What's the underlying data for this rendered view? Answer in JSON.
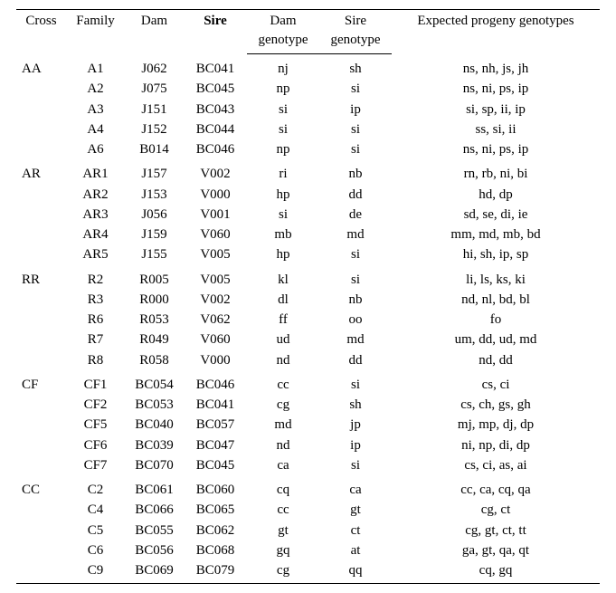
{
  "headers": {
    "cross": "Cross",
    "family": "Family",
    "dam": "Dam",
    "sire": "Sire",
    "dam_genotype_a": "Dam",
    "dam_genotype_b": "genotype",
    "sire_genotype_a": "Sire",
    "sire_genotype_b": "genotype",
    "expected": "Expected progeny genotypes"
  },
  "groups": [
    {
      "cross": "AA",
      "rows": [
        {
          "family": "A1",
          "dam": "J062",
          "sire": "BC041",
          "damg": "nj",
          "sireg": "sh",
          "prog": "ns, nh, js, jh"
        },
        {
          "family": "A2",
          "dam": "J075",
          "sire": "BC045",
          "damg": "np",
          "sireg": "si",
          "prog": "ns, ni, ps, ip"
        },
        {
          "family": "A3",
          "dam": "J151",
          "sire": "BC043",
          "damg": "si",
          "sireg": "ip",
          "prog": "si, sp, ii, ip"
        },
        {
          "family": "A4",
          "dam": "J152",
          "sire": "BC044",
          "damg": "si",
          "sireg": "si",
          "prog": "ss, si, ii"
        },
        {
          "family": "A6",
          "dam": "B014",
          "sire": "BC046",
          "damg": "np",
          "sireg": "si",
          "prog": "ns, ni, ps, ip"
        }
      ]
    },
    {
      "cross": "AR",
      "rows": [
        {
          "family": "AR1",
          "dam": "J157",
          "sire": "V002",
          "damg": "ri",
          "sireg": "nb",
          "prog": "rn, rb, ni, bi"
        },
        {
          "family": "AR2",
          "dam": "J153",
          "sire": "V000",
          "damg": "hp",
          "sireg": "dd",
          "prog": "hd, dp"
        },
        {
          "family": "AR3",
          "dam": "J056",
          "sire": "V001",
          "damg": "si",
          "sireg": "de",
          "prog": "sd, se, di, ie"
        },
        {
          "family": "AR4",
          "dam": "J159",
          "sire": "V060",
          "damg": "mb",
          "sireg": "md",
          "prog": "mm, md, mb, bd"
        },
        {
          "family": "AR5",
          "dam": "J155",
          "sire": "V005",
          "damg": "hp",
          "sireg": "si",
          "prog": "hi, sh, ip, sp"
        }
      ]
    },
    {
      "cross": "RR",
      "rows": [
        {
          "family": "R2",
          "dam": "R005",
          "sire": "V005",
          "damg": "kl",
          "sireg": "si",
          "prog": "li, ls, ks, ki"
        },
        {
          "family": "R3",
          "dam": "R000",
          "sire": "V002",
          "damg": "dl",
          "sireg": "nb",
          "prog": "nd, nl, bd, bl"
        },
        {
          "family": "R6",
          "dam": "R053",
          "sire": "V062",
          "damg": "ff",
          "sireg": "oo",
          "prog": "fo"
        },
        {
          "family": "R7",
          "dam": "R049",
          "sire": "V060",
          "damg": "ud",
          "sireg": "md",
          "prog": "um, dd, ud, md"
        },
        {
          "family": "R8",
          "dam": "R058",
          "sire": "V000",
          "damg": "nd",
          "sireg": "dd",
          "prog": "nd, dd"
        }
      ]
    },
    {
      "cross": "CF",
      "rows": [
        {
          "family": "CF1",
          "dam": "BC054",
          "sire": "BC046",
          "damg": "cc",
          "sireg": "si",
          "prog": "cs, ci"
        },
        {
          "family": "CF2",
          "dam": "BC053",
          "sire": "BC041",
          "damg": "cg",
          "sireg": "sh",
          "prog": "cs, ch, gs, gh"
        },
        {
          "family": "CF5",
          "dam": "BC040",
          "sire": "BC057",
          "damg": "md",
          "sireg": "jp",
          "prog": "mj, mp, dj, dp"
        },
        {
          "family": "CF6",
          "dam": "BC039",
          "sire": "BC047",
          "damg": "nd",
          "sireg": "ip",
          "prog": "ni, np, di, dp"
        },
        {
          "family": "CF7",
          "dam": "BC070",
          "sire": "BC045",
          "damg": "ca",
          "sireg": "si",
          "prog": "cs, ci, as, ai"
        }
      ]
    },
    {
      "cross": "CC",
      "rows": [
        {
          "family": "C2",
          "dam": "BC061",
          "sire": "BC060",
          "damg": "cq",
          "sireg": "ca",
          "prog": "cc, ca, cq, qa"
        },
        {
          "family": "C4",
          "dam": "BC066",
          "sire": "BC065",
          "damg": "cc",
          "sireg": "gt",
          "prog": "cg, ct"
        },
        {
          "family": "C5",
          "dam": "BC055",
          "sire": "BC062",
          "damg": "gt",
          "sireg": "ct",
          "prog": "cg, gt, ct, tt"
        },
        {
          "family": "C6",
          "dam": "BC056",
          "sire": "BC068",
          "damg": "gq",
          "sireg": "at",
          "prog": "ga, gt, qa, qt"
        },
        {
          "family": "C9",
          "dam": "BC069",
          "sire": "BC079",
          "damg": "cg",
          "sireg": "qq",
          "prog": "cq, gq"
        }
      ]
    }
  ]
}
